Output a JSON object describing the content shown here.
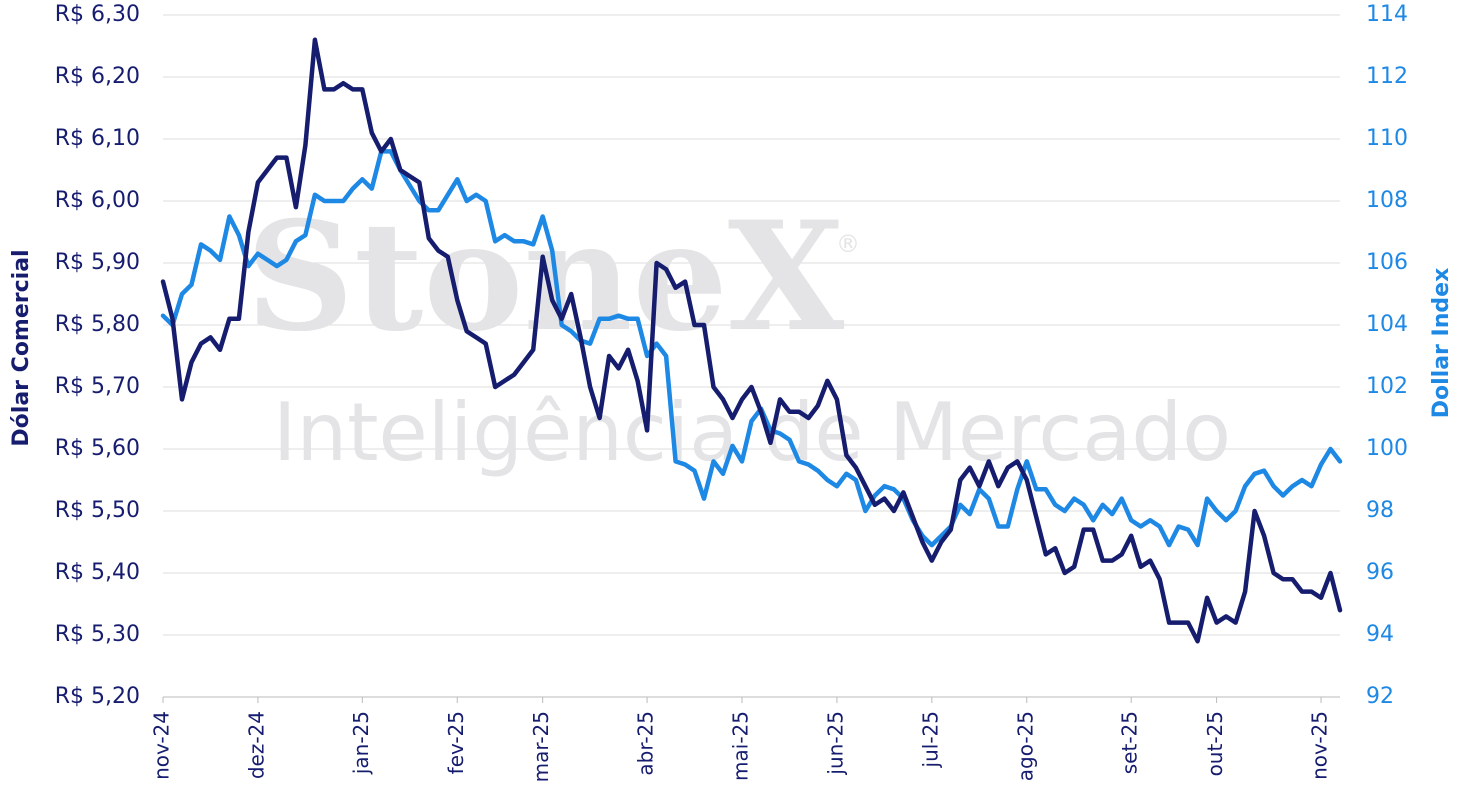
{
  "chart_data": {
    "type": "line",
    "watermark_title": "StoneX",
    "watermark_mark": "®",
    "watermark_subtitle": "Inteligência de Mercado",
    "ylabel": "Dólar Comercial",
    "y2label": "Dollar Index",
    "categories": [
      "nov-24",
      null,
      null,
      null,
      null,
      null,
      null,
      null,
      null,
      null,
      "dez-24",
      null,
      null,
      null,
      null,
      null,
      null,
      null,
      null,
      null,
      null,
      "jan-25",
      null,
      null,
      null,
      null,
      null,
      null,
      null,
      null,
      null,
      "fev-25",
      null,
      null,
      null,
      null,
      null,
      null,
      null,
      null,
      "mar-25",
      null,
      null,
      null,
      null,
      null,
      null,
      null,
      null,
      null,
      null,
      "abr-25",
      null,
      null,
      null,
      null,
      null,
      null,
      null,
      null,
      null,
      "mai-25",
      null,
      null,
      null,
      null,
      null,
      null,
      null,
      null,
      null,
      "jun-25",
      null,
      null,
      null,
      null,
      null,
      null,
      null,
      null,
      null,
      "jul-25",
      null,
      null,
      null,
      null,
      null,
      null,
      null,
      null,
      null,
      "ago-25",
      null,
      null,
      null,
      null,
      null,
      null,
      null,
      null,
      null,
      null,
      "set-25",
      null,
      null,
      null,
      null,
      null,
      null,
      null,
      null,
      "out-25",
      null,
      null,
      null,
      null,
      null,
      null,
      null,
      null,
      null,
      null,
      "nov-25",
      null,
      null
    ],
    "series": [
      {
        "name": "Dólar Comercial",
        "color": "#161d6f",
        "axis": "y",
        "values": [
          5.87,
          5.81,
          5.68,
          5.74,
          5.77,
          5.78,
          5.76,
          5.81,
          5.81,
          5.95,
          6.03,
          6.05,
          6.07,
          6.07,
          5.99,
          6.09,
          6.26,
          6.18,
          6.18,
          6.19,
          6.18,
          6.18,
          6.11,
          6.08,
          6.1,
          6.05,
          6.04,
          6.03,
          5.94,
          5.92,
          5.91,
          5.84,
          5.79,
          5.78,
          5.77,
          5.7,
          5.71,
          5.72,
          5.74,
          5.76,
          5.91,
          5.84,
          5.81,
          5.85,
          5.78,
          5.7,
          5.65,
          5.75,
          5.73,
          5.76,
          5.71,
          5.63,
          5.9,
          5.89,
          5.86,
          5.87,
          5.8,
          5.8,
          5.7,
          5.68,
          5.65,
          5.68,
          5.7,
          5.66,
          5.61,
          5.68,
          5.66,
          5.66,
          5.65,
          5.67,
          5.71,
          5.68,
          5.59,
          5.57,
          5.54,
          5.51,
          5.52,
          5.5,
          5.53,
          5.49,
          5.45,
          5.42,
          5.45,
          5.47,
          5.55,
          5.57,
          5.54,
          5.58,
          5.54,
          5.57,
          5.58,
          5.55,
          5.49,
          5.43,
          5.44,
          5.4,
          5.41,
          5.47,
          5.47,
          5.42,
          5.42,
          5.43,
          5.46,
          5.41,
          5.42,
          5.39,
          5.32,
          5.32,
          5.32,
          5.29,
          5.36,
          5.32,
          5.33,
          5.32,
          5.37,
          5.5,
          5.46,
          5.4,
          5.39,
          5.39,
          5.37,
          5.37,
          5.36,
          5.4,
          5.34
        ]
      },
      {
        "name": "Dollar Index",
        "color": "#1e88e5",
        "axis": "y2",
        "values": [
          104.3,
          104.0,
          105.0,
          105.3,
          106.6,
          106.4,
          106.1,
          107.5,
          106.9,
          105.9,
          106.3,
          106.1,
          105.9,
          106.1,
          106.7,
          106.9,
          108.2,
          108.0,
          108.0,
          108.0,
          108.4,
          108.7,
          108.4,
          109.6,
          109.6,
          109.0,
          108.5,
          108.0,
          107.7,
          107.7,
          108.2,
          108.7,
          108.0,
          108.2,
          108.0,
          106.7,
          106.9,
          106.7,
          106.7,
          106.6,
          107.5,
          106.4,
          104.0,
          103.8,
          103.5,
          103.4,
          104.2,
          104.2,
          104.3,
          104.2,
          104.2,
          103.0,
          103.4,
          103.0,
          99.6,
          99.5,
          99.3,
          98.4,
          99.6,
          99.2,
          100.1,
          99.6,
          100.9,
          101.3,
          100.6,
          100.5,
          100.3,
          99.6,
          99.5,
          99.3,
          99.0,
          98.8,
          99.2,
          99.0,
          98.0,
          98.5,
          98.8,
          98.7,
          98.4,
          97.7,
          97.2,
          96.9,
          97.2,
          97.5,
          98.2,
          97.9,
          98.7,
          98.4,
          97.5,
          97.5,
          98.7,
          99.6,
          98.7,
          98.7,
          98.2,
          98.0,
          98.4,
          98.2,
          97.7,
          98.2,
          97.9,
          98.4,
          97.7,
          97.5,
          97.7,
          97.5,
          96.9,
          97.5,
          97.4,
          96.9,
          98.4,
          98.0,
          97.7,
          98.0,
          98.8,
          99.2,
          99.3,
          98.8,
          98.5,
          98.8,
          99.0,
          98.8,
          99.5,
          100.0,
          99.6
        ]
      }
    ],
    "ylim": [
      5.2,
      6.3
    ],
    "yticks": [
      {
        "value": 5.2,
        "label": "R$ 5,20"
      },
      {
        "value": 5.3,
        "label": "R$ 5,30"
      },
      {
        "value": 5.4,
        "label": "R$ 5,40"
      },
      {
        "value": 5.5,
        "label": "R$ 5,50"
      },
      {
        "value": 5.6,
        "label": "R$ 5,60"
      },
      {
        "value": 5.7,
        "label": "R$ 5,70"
      },
      {
        "value": 5.8,
        "label": "R$ 5,80"
      },
      {
        "value": 5.9,
        "label": "R$ 5,90"
      },
      {
        "value": 6.0,
        "label": "R$ 6,00"
      },
      {
        "value": 6.1,
        "label": "R$ 6,10"
      },
      {
        "value": 6.2,
        "label": "R$ 6,20"
      },
      {
        "value": 6.3,
        "label": "R$ 6,30"
      }
    ],
    "y2lim": [
      92,
      114
    ],
    "y2ticks": [
      92,
      94,
      96,
      98,
      100,
      102,
      104,
      106,
      108,
      110,
      112,
      114
    ],
    "grid": true
  }
}
